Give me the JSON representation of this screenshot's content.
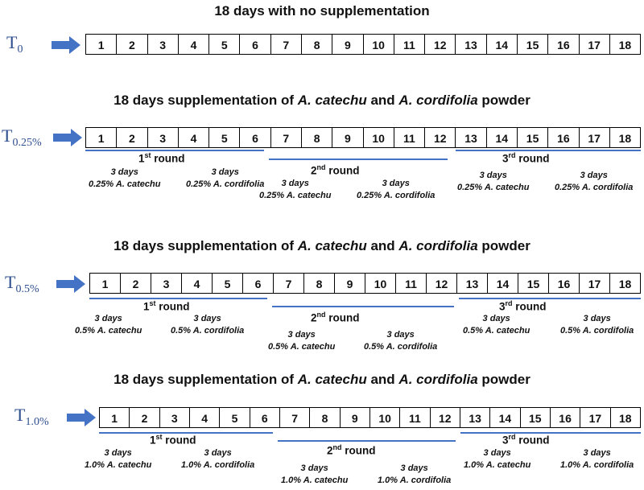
{
  "days": [
    "1",
    "2",
    "3",
    "4",
    "5",
    "6",
    "7",
    "8",
    "9",
    "10",
    "11",
    "12",
    "13",
    "14",
    "15",
    "16",
    "17",
    "18"
  ],
  "text": {
    "suppl_pre": "18 days supplementation of ",
    "catechu": "A. catechu",
    "and": " and ",
    "cordifolia": "A. cordifolia",
    "powder": " powder",
    "three_days": "3 days",
    "round": "round",
    "st": "st",
    "nd": "nd",
    "rd": "rd",
    "n1": "1",
    "n2": "2",
    "n3": "3"
  },
  "panels": [
    {
      "heading_plain": "18 days with no supplementation",
      "t_main": "T",
      "t_sub": "0"
    },
    {
      "t_main": "T",
      "t_sub": "0.25%",
      "dose_catechu": "0.25% A. catechu",
      "dose_cordifolia": "0.25% A. cordifolia"
    },
    {
      "t_main": "T",
      "t_sub": "0.5%",
      "dose_catechu": "0.5% A. catechu",
      "dose_cordifolia": "0.5% A. cordifolia"
    },
    {
      "t_main": "T",
      "t_sub": "1.0%",
      "dose_catechu": "1.0% A. catechu",
      "dose_cordifolia": "1.0% A. cordifolia"
    }
  ],
  "colors": {
    "arrow": "#4472c4",
    "round_line": "#4472c4",
    "t_label": "#2e4f8f"
  }
}
